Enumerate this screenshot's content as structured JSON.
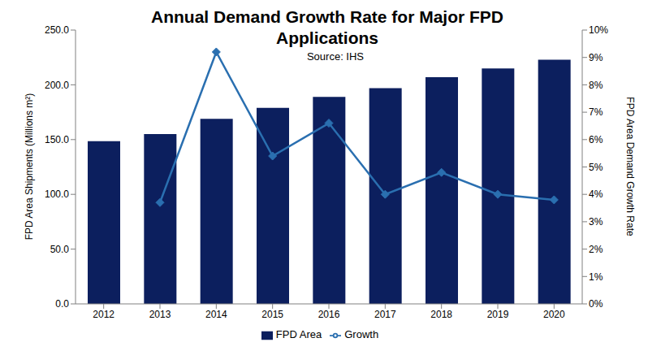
{
  "chart_data": {
    "type": "bar",
    "title": "Annual Demand Growth Rate for Major FPD Applications",
    "subtitle": "Source: IHS",
    "y_label": "FPD Area Shipments (Millions m²)",
    "y2_label": "FPD Area Demand Growth Rate",
    "categories": [
      "2012",
      "2013",
      "2014",
      "2015",
      "2016",
      "2017",
      "2018",
      "2019",
      "2020"
    ],
    "series": [
      {
        "name": "FPD Area",
        "type": "bar",
        "color": "#0c1f5e",
        "values": [
          148.5,
          155,
          169,
          179,
          189,
          197,
          207,
          215,
          223
        ]
      },
      {
        "name": "Growth",
        "type": "line",
        "color": "#2a6fb0",
        "marker": "diamond",
        "axis": "y2",
        "values": [
          null,
          3.7,
          9.2,
          5.4,
          6.6,
          4.0,
          4.8,
          4.0,
          3.8
        ]
      }
    ],
    "ylim": [
      0,
      250
    ],
    "yticks": [
      {
        "value": 0,
        "label": "0.0"
      },
      {
        "value": 50,
        "label": "50.0"
      },
      {
        "value": 100,
        "label": "100.0"
      },
      {
        "value": 150,
        "label": "150.0"
      },
      {
        "value": 200,
        "label": "200.0"
      },
      {
        "value": 250,
        "label": "250.0"
      }
    ],
    "y2lim": [
      0,
      10
    ],
    "y2ticks": [
      {
        "value": 0,
        "label": "0%"
      },
      {
        "value": 1,
        "label": "1%"
      },
      {
        "value": 2,
        "label": "2%"
      },
      {
        "value": 3,
        "label": "3%"
      },
      {
        "value": 4,
        "label": "4%"
      },
      {
        "value": 5,
        "label": "5%"
      },
      {
        "value": 6,
        "label": "6%"
      },
      {
        "value": 7,
        "label": "7%"
      },
      {
        "value": 8,
        "label": "8%"
      },
      {
        "value": 9,
        "label": "9%"
      },
      {
        "value": 10,
        "label": "10%"
      }
    ],
    "grid": false,
    "legend": "bottom"
  }
}
